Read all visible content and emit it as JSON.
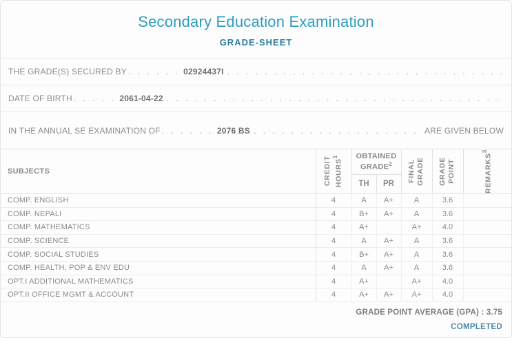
{
  "header": {
    "title": "Secondary Education Examination",
    "subtitle": "GRADE-SHEET"
  },
  "info": {
    "filler": ". . . . . . . . . . . . . . . . . . . . . . . . . . . . . . . . . . . . . . . . . . . . . . . . . . . . . . . . . . . . . . . . . . . . . . . . . . . . . . . . . . . . . . . . . . . . . . . . . . . . . . . .",
    "rows": [
      {
        "label": "THE GRADE(S) SECURED BY",
        "leader": ". . . . . .",
        "value": "02924437I",
        "suffix": ""
      },
      {
        "label": "DATE OF BIRTH",
        "leader": ". . . . .",
        "value": "2061-04-22",
        "suffix": ""
      },
      {
        "label": "IN THE ANNUAL SE EXAMINATION OF",
        "leader": ". . . . . .",
        "value": "2076 BS",
        "suffix": "ARE GIVEN BELOW"
      }
    ]
  },
  "table": {
    "headers": {
      "subjects": "SUBJECTS",
      "credit": {
        "line1": "CREDIT",
        "line2": "HOURS",
        "sup": "1"
      },
      "obtained": {
        "line1": "OBTAINED",
        "line2": "GRADE",
        "sup": "2"
      },
      "th_label": "TH",
      "pr_label": "PR",
      "final": {
        "line1": "FINAL",
        "line2": "GRADE"
      },
      "point": {
        "line1": "GRADE",
        "line2": "POINT"
      },
      "remarks": {
        "label": "REMARKS",
        "sup": "3"
      }
    },
    "rows": [
      {
        "subject": "COMP. ENGLISH",
        "credit": "4",
        "th": "A",
        "pr": "A+",
        "final": "A",
        "point": "3.6",
        "remarks": ""
      },
      {
        "subject": "COMP. NEPALI",
        "credit": "4",
        "th": "B+",
        "pr": "A+",
        "final": "A",
        "point": "3.6",
        "remarks": ""
      },
      {
        "subject": "COMP. MATHEMATICS",
        "credit": "4",
        "th": "A+",
        "pr": "",
        "final": "A+",
        "point": "4.0",
        "remarks": ""
      },
      {
        "subject": "COMP. SCIENCE",
        "credit": "4",
        "th": "A",
        "pr": "A+",
        "final": "A",
        "point": "3.6",
        "remarks": ""
      },
      {
        "subject": "COMP. SOCIAL STUDIES",
        "credit": "4",
        "th": "B+",
        "pr": "A+",
        "final": "A",
        "point": "3.6",
        "remarks": ""
      },
      {
        "subject": "COMP. HEALTH, POP & ENV EDU",
        "credit": "4",
        "th": "A",
        "pr": "A+",
        "final": "A",
        "point": "3.6",
        "remarks": ""
      },
      {
        "subject": "OPT.I ADDITIONAL MATHEMATICS",
        "credit": "4",
        "th": "A+",
        "pr": "",
        "final": "A+",
        "point": "4.0",
        "remarks": ""
      },
      {
        "subject": "OPT.II OFFICE MGMT & ACCOUNT",
        "credit": "4",
        "th": "A+",
        "pr": "A+",
        "final": "A+",
        "point": "4.0",
        "remarks": ""
      }
    ]
  },
  "footer": {
    "gpa": "GRADE POINT AVERAGE (GPA) : 3.75",
    "status": "COMPLETED"
  },
  "colors": {
    "title_teal": "#2f9cbe",
    "subtitle_blue": "#2c7da2",
    "status_blue": "#4e8aa8",
    "text_gray": "#8a8a8a",
    "border_gray": "#e4e4e4"
  }
}
